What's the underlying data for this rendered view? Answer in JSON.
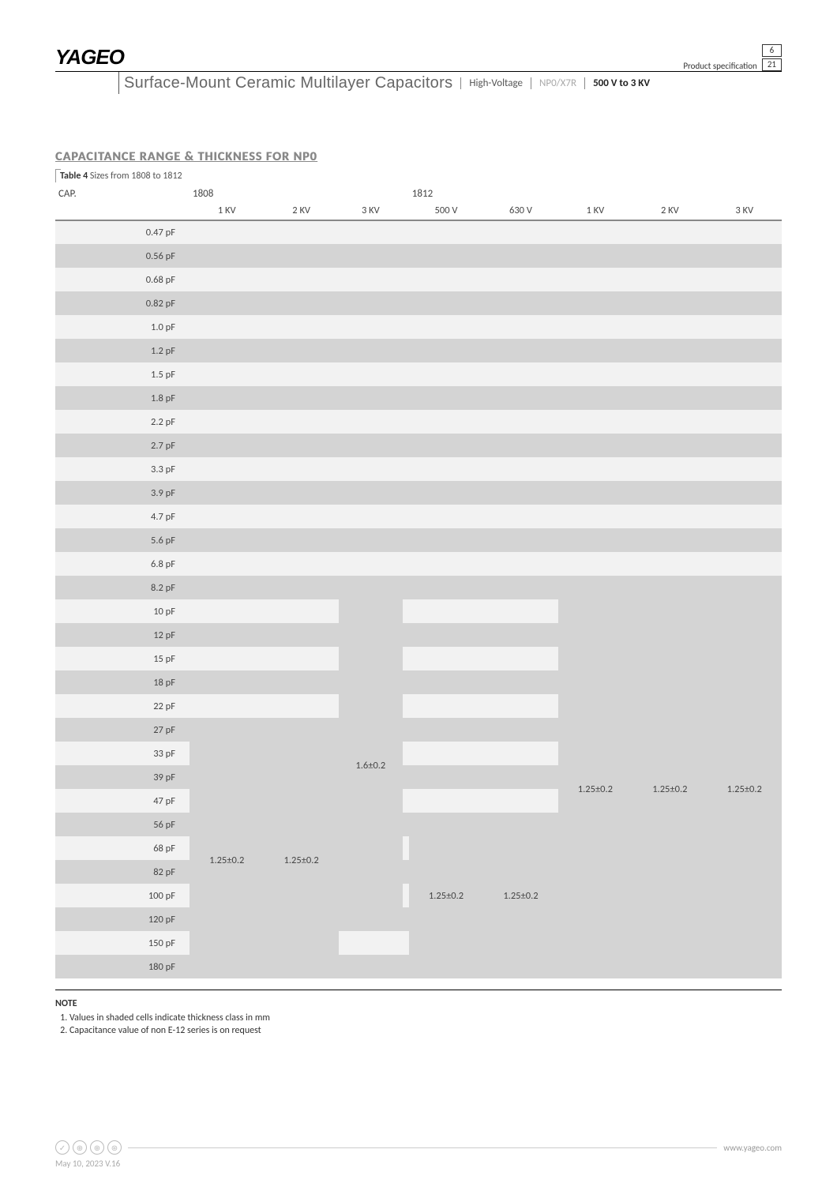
{
  "header": {
    "logo": "YAGEO",
    "spec_label": "Product specification",
    "page_num": "6",
    "page_total": "21",
    "title": "Surface-Mount Ceramic Multilayer Capacitors",
    "tag1": "High-Voltage",
    "tag2": "NP0/X7R",
    "tag3": "500 V to 3 KV"
  },
  "section_title": "CAPACITANCE RANGE & THICKNESS FOR NP0",
  "table_label_b": "Table 4",
  "table_label": "  Sizes from 1808 to 1812",
  "col_cap": "CAP.",
  "group1": "1808",
  "group2": "1812",
  "cols1": [
    "1 KV",
    "2 KV",
    "3 KV"
  ],
  "cols2": [
    "500 V",
    "630 V",
    "1 KV",
    "2 KV",
    "3 KV"
  ],
  "caps": [
    "0.47 pF",
    "0.56 pF",
    "0.68 pF",
    "0.82 pF",
    "1.0 pF",
    "1.2 pF",
    "1.5 pF",
    "1.8 pF",
    "2.2 pF",
    "2.7 pF",
    "3.3 pF",
    "3.9 pF",
    "4.7 pF",
    "5.6 pF",
    "6.8 pF",
    "8.2 pF",
    "10 pF",
    "12 pF",
    "15 pF",
    "18 pF",
    "22 pF",
    "27 pF",
    "33 pF",
    "39 pF",
    "47 pF",
    "56 pF",
    "68 pF",
    "82 pF",
    "100 pF",
    "120 pF",
    "150 pF",
    "180 pF"
  ],
  "thickness": {
    "a": "1.25±0.2",
    "b": "1.6±0.2"
  },
  "blocks": [
    {
      "col": "1808_1kv",
      "start": 22,
      "span": 10,
      "val": "a"
    },
    {
      "col": "1808_2kv",
      "start": 22,
      "span": 10,
      "val": "a"
    },
    {
      "col": "1808_3kv",
      "start": 16,
      "span": 14,
      "val": "b"
    },
    {
      "col": "1812_500v",
      "start": 25,
      "span": 7,
      "val": "a"
    },
    {
      "col": "1812_630v",
      "start": 25,
      "span": 7,
      "val": "a"
    },
    {
      "col": "1812_1kv",
      "start": 16,
      "span": 16,
      "val": "a"
    },
    {
      "col": "1812_2kv",
      "start": 16,
      "span": 16,
      "val": "a"
    },
    {
      "col": "1812_3kv",
      "start": 16,
      "span": 16,
      "val": "a"
    }
  ],
  "gap_before_500v_start": 24,
  "notes_title": "NOTE",
  "notes": [
    "Values in shaded cells indicate thickness class in mm",
    "Capacitance value of non E-12 series is on request"
  ],
  "footer_url": "www.yageo.com",
  "footer_date": "May 10, 2023  V.16"
}
